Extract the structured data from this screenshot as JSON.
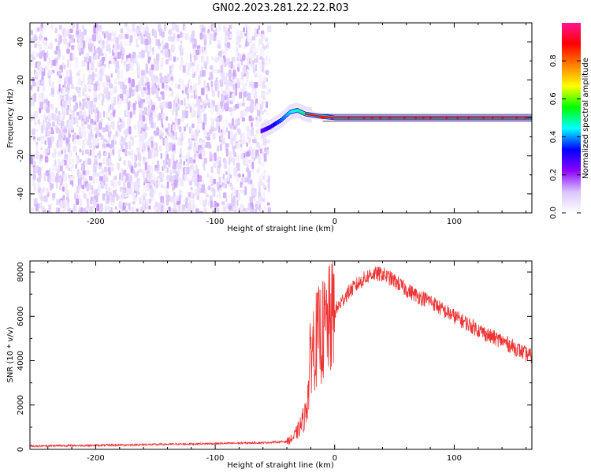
{
  "figure_title": "GN02.2023.281.22.22.R03",
  "chart_data": [
    {
      "type": "heatmap",
      "title": "",
      "xlabel": "Height of straight line (km)",
      "ylabel": "Frequency (Hz)",
      "xlim": [
        -255,
        165
      ],
      "ylim": [
        -50,
        50
      ],
      "xticks": [
        -200,
        -100,
        0,
        100
      ],
      "yticks": [
        -40,
        -20,
        0,
        20,
        40
      ],
      "colorbar": {
        "label": "Normalized spectral amplitude",
        "range": [
          0,
          1
        ],
        "ticks": [
          0.0,
          0.2,
          0.4,
          0.6,
          0.8
        ],
        "colormap": [
          "#ffffff",
          "#d9c4ff",
          "#8b00ff",
          "#0000ff",
          "#00ffff",
          "#00ff00",
          "#ffff00",
          "#ff8000",
          "#ff0000",
          "#ff1493"
        ]
      },
      "features": {
        "noise_region_x": [
          -255,
          -60
        ],
        "noise_amplitude": [
          0.0,
          0.12
        ],
        "tone_start_x": -62,
        "tone_frequency_hz": 0,
        "tone_amplitude": 0.9,
        "ramp_points": [
          [
            -62,
            -7
          ],
          [
            -55,
            -5
          ],
          [
            -45,
            -1
          ],
          [
            -38,
            3
          ],
          [
            -32,
            4
          ],
          [
            -25,
            2
          ],
          [
            -15,
            1
          ],
          [
            0,
            0
          ],
          [
            165,
            0
          ]
        ]
      }
    },
    {
      "type": "line",
      "title": "",
      "xlabel": "Height of straight line (km)",
      "ylabel": "SNR (10 * v/v)",
      "xlim": [
        -255,
        165
      ],
      "ylim": [
        0,
        8500
      ],
      "xticks": [
        -200,
        -100,
        0,
        100
      ],
      "yticks": [
        0,
        2000,
        4000,
        6000,
        8000
      ],
      "series": [
        {
          "color": "#ee3333",
          "x": [
            -255,
            -200,
            -150,
            -100,
            -60,
            -40,
            -35,
            -30,
            -25,
            -22,
            -20,
            -15,
            -10,
            -5,
            0,
            10,
            20,
            30,
            40,
            50,
            60,
            70,
            80,
            90,
            100,
            110,
            120,
            130,
            140,
            150,
            160,
            165
          ],
          "values": [
            150,
            180,
            220,
            260,
            300,
            350,
            500,
            900,
            1500,
            2600,
            4500,
            5000,
            5300,
            5700,
            6200,
            7000,
            7500,
            7900,
            7900,
            7600,
            7200,
            6900,
            6700,
            6300,
            6000,
            5700,
            5400,
            5100,
            4900,
            4600,
            4300,
            4200
          ]
        }
      ]
    }
  ]
}
